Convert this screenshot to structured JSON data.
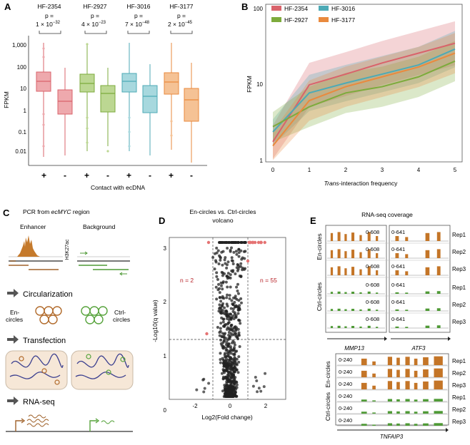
{
  "panel_a": {
    "letter": "A",
    "groups": [
      {
        "name": "HF-2354",
        "p_label": "p =",
        "p_value": "1 × 10",
        "p_exp": "−32",
        "color": "#d9636b",
        "fill": "#eea9ad"
      },
      {
        "name": "HF-2927",
        "p_label": "p =",
        "p_value": "4 × 10",
        "p_exp": "−23",
        "color": "#7dab3c",
        "fill": "#bcd792"
      },
      {
        "name": "HF-3016",
        "p_label": "p =",
        "p_value": "7 × 10",
        "p_exp": "−48",
        "color": "#4daab6",
        "fill": "#a7d8de"
      },
      {
        "name": "HF-3177",
        "p_label": "p =",
        "p_value": "2 × 10",
        "p_exp": "−45",
        "color": "#e98a3e",
        "fill": "#f5c295"
      }
    ],
    "ylabel": "FPKM",
    "yticks": [
      "1,000",
      "100",
      "10",
      "1",
      "0.1",
      "0.01"
    ],
    "contact_signs": [
      "+",
      "-",
      "+",
      "-",
      "+",
      "-",
      "+",
      "-"
    ],
    "xlabel": "Contact with ecDNA"
  },
  "panel_b": {
    "letter": "B",
    "legend": [
      "HF-2354",
      "HF-3016",
      "HF-2927",
      "HF-3177"
    ],
    "ylabel": "FPKM",
    "yticks": [
      "100",
      "10",
      "1"
    ],
    "xticks": [
      "0",
      "1",
      "2",
      "3",
      "4",
      "5"
    ],
    "xlabel_italic": "Trans",
    "xlabel_rest": "-interaction frequency"
  },
  "chart_data": [
    {
      "type": "line",
      "title": "",
      "xlabel": "Trans-interaction frequency",
      "ylabel": "FPKM",
      "yscale": "log",
      "ylim": [
        1,
        100
      ],
      "x": [
        0,
        1,
        2,
        3,
        4,
        5
      ],
      "series": [
        {
          "name": "HF-2354",
          "color": "#d9636b",
          "values": [
            1.8,
            9.5,
            13,
            18,
            24,
            32
          ]
        },
        {
          "name": "HF-3016",
          "color": "#4daab6",
          "values": [
            2.4,
            7.5,
            10,
            13,
            17,
            27
          ]
        },
        {
          "name": "HF-2927",
          "color": "#7dab3c",
          "values": [
            2.8,
            5,
            7.5,
            9,
            12,
            19
          ]
        },
        {
          "name": "HF-3177",
          "color": "#e98a3e",
          "values": [
            1.6,
            6,
            9,
            12,
            16,
            24
          ]
        }
      ]
    }
  ],
  "panel_c": {
    "letter": "C",
    "title_pre": "PCR from ",
    "title_italic": "ecMYC",
    "title_post": " region",
    "enhancer": "Enhancer",
    "background": "Background",
    "h3k27ac": "H3K27ac",
    "step1": "Circularization",
    "en_circles_1": "En-",
    "en_circles_2": "circles",
    "ctrl_circles_1": "Ctrl-",
    "ctrl_circles_2": "circles",
    "step2": "Transfection",
    "step3": "RNA-seq"
  },
  "panel_d": {
    "letter": "D",
    "title1": "En-circles vs. Ctrl-circles",
    "title2": "volcano",
    "n_left": "n = 2",
    "n_right": "n = 55",
    "ylabel": "-Log10(q value)",
    "yticks": [
      "3",
      "2",
      "1",
      "0"
    ],
    "xticks": [
      "-2",
      "0",
      "2"
    ],
    "xlabel": "Log2(Fold change)"
  },
  "panel_e": {
    "letter": "E",
    "title": "RNA-seq coverage",
    "en_label": "En-circles",
    "ctrl_label": "Ctrl-circles",
    "range_mmp13": "0-608",
    "range_atf3": "0-641",
    "range_tnfaip3": "0-240",
    "reps": [
      "Rep1",
      "Rep2",
      "Rep3",
      "Rep1",
      "Rep2",
      "Rep3"
    ],
    "gene1": "MMP13",
    "gene2": "ATF3",
    "gene3": "TNFAIP3"
  }
}
